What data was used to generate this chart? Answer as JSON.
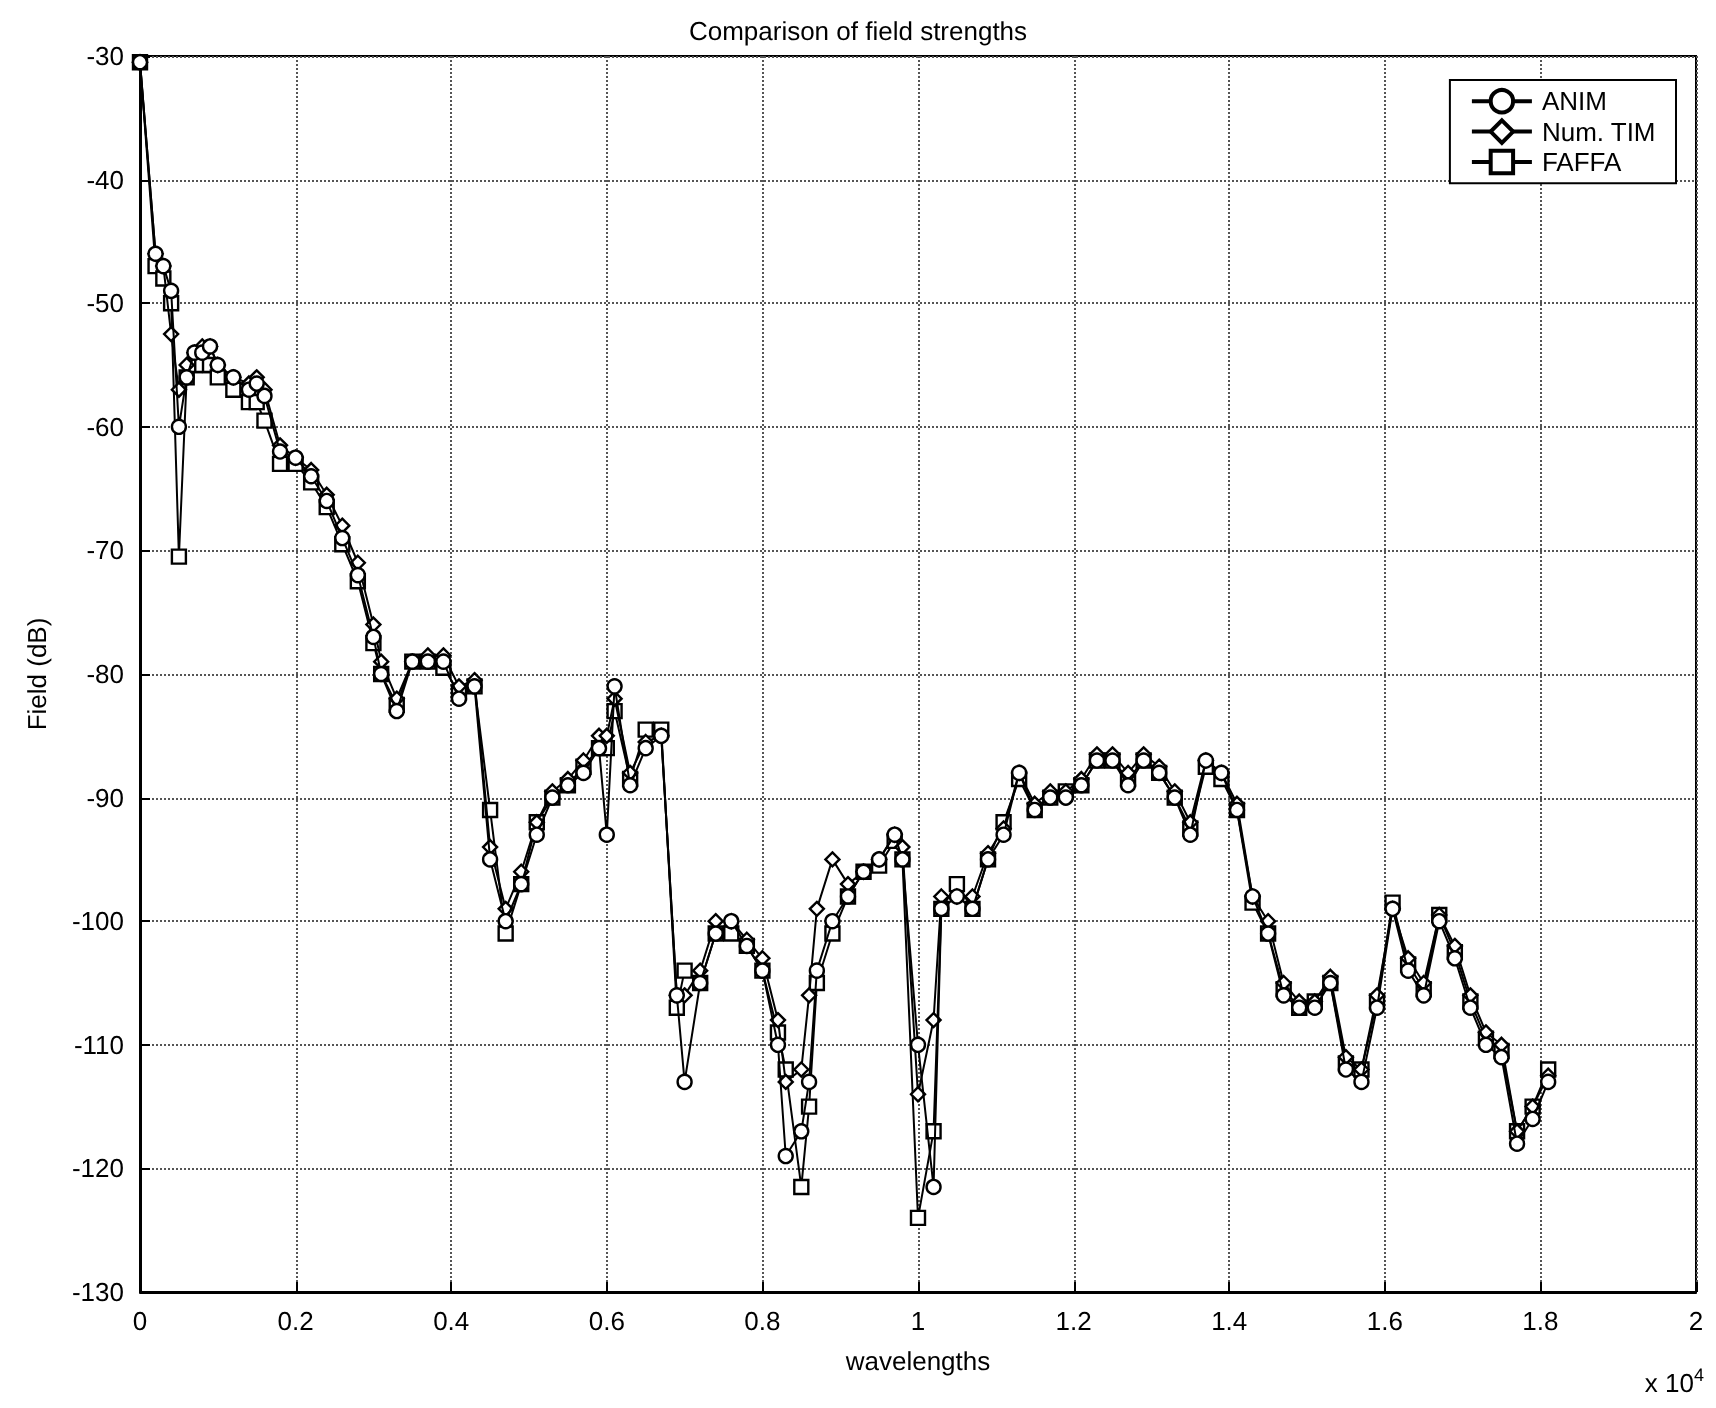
{
  "chart_data": {
    "type": "line",
    "title": "Comparison of field strengths",
    "xlabel": "wavelengths",
    "ylabel": "Field (dB)",
    "annotations": [
      "x 10$^{4}$"
    ],
    "x": [
      0,
      0.02,
      0.03,
      0.04,
      0.05,
      0.06,
      0.07,
      0.08,
      0.09,
      0.1,
      0.12,
      0.14,
      0.15,
      0.16,
      0.18,
      0.2,
      0.22,
      0.24,
      0.26,
      0.28,
      0.3,
      0.31,
      0.33,
      0.35,
      0.37,
      0.39,
      0.41,
      0.43,
      0.45,
      0.47,
      0.49,
      0.51,
      0.53,
      0.55,
      0.57,
      0.59,
      0.6,
      0.61,
      0.63,
      0.65,
      0.67,
      0.69,
      0.7,
      0.72,
      0.74,
      0.76,
      0.78,
      0.8,
      0.82,
      0.83,
      0.85,
      0.86,
      0.87,
      0.89,
      0.91,
      0.93,
      0.95,
      0.97,
      0.98,
      1,
      1.02,
      1.03,
      1.05,
      1.07,
      1.09,
      1.11,
      1.13,
      1.15,
      1.17,
      1.19,
      1.21,
      1.23,
      1.25,
      1.27,
      1.29,
      1.31,
      1.33,
      1.35,
      1.37,
      1.39,
      1.41,
      1.43,
      1.45,
      1.47,
      1.49,
      1.51,
      1.53,
      1.55,
      1.57,
      1.59,
      1.61,
      1.63,
      1.65,
      1.67,
      1.69,
      1.71,
      1.73,
      1.75,
      1.77,
      1.79,
      1.81
    ],
    "series": [
      {
        "name": "ANIM",
        "color": "#000000",
        "marker": "circle",
        "values": [
          -30.5,
          -46,
          -47,
          -49,
          -60,
          -56,
          -54,
          -54,
          -53.5,
          -55,
          -56,
          -57,
          -56.5,
          -57.5,
          -62,
          -62.5,
          -64,
          -66,
          -69,
          -72,
          -77,
          -80,
          -83,
          -79,
          -79,
          -79,
          -82,
          -81,
          -95,
          -100,
          -97,
          -93,
          -90,
          -89,
          -88,
          -86,
          -93,
          -81,
          -89,
          -86,
          -85,
          -106,
          -113,
          -105,
          -101,
          -100,
          -102,
          -104,
          -110,
          -119,
          -117,
          -113,
          -104,
          -100,
          -98,
          -96,
          -95,
          -93,
          -95,
          -110,
          -121.5,
          -99,
          -98,
          -99,
          -95,
          -93,
          -88,
          -91,
          -90,
          -90,
          -89,
          -87,
          -87,
          -89,
          -87,
          -88,
          -90,
          -93,
          -87,
          -88,
          -91,
          -98,
          -101,
          -106,
          -107,
          -107,
          -105,
          -112,
          -113,
          -107,
          -99,
          -104,
          -106,
          -100,
          -103,
          -107,
          -110,
          -111,
          -118,
          -116,
          -113
        ]
      },
      {
        "name": "Num. TIM",
        "color": "#000000",
        "marker": "diamond",
        "values": [
          -30.5,
          -46,
          -47,
          -52.5,
          -57,
          -55,
          -54,
          -53.5,
          -53.5,
          -55,
          -56,
          -56.5,
          -56,
          -57,
          -61.5,
          -62.5,
          -63.5,
          -65.5,
          -68,
          -71,
          -76,
          -79,
          -82,
          -79,
          -78.5,
          -78.5,
          -81,
          -80.5,
          -94,
          -99,
          -96,
          -92,
          -89.5,
          -88.5,
          -87,
          -85,
          -85,
          -82,
          -88,
          -85.5,
          -85,
          -106,
          -106,
          -104,
          -100,
          -100,
          -101.5,
          -103,
          -108,
          -113,
          -112,
          -106,
          -99,
          -95,
          -97,
          -96,
          -95,
          -93,
          -94,
          -114,
          -108,
          -98,
          -98,
          -98,
          -94.5,
          -92.5,
          -88,
          -90.5,
          -89.5,
          -89.5,
          -88.5,
          -86.5,
          -86.5,
          -88,
          -86.5,
          -87.5,
          -89.5,
          -92,
          -87,
          -88,
          -90.5,
          -98,
          -100,
          -105,
          -106.5,
          -106.5,
          -104.5,
          -111,
          -112,
          -106,
          -99,
          -103,
          -105,
          -99.5,
          -102,
          -106,
          -109,
          -110,
          -117,
          -115,
          -112.5
        ]
      },
      {
        "name": "FAFFA",
        "color": "#000000",
        "marker": "square",
        "values": [
          -30.5,
          -47,
          -48,
          -50,
          -70.5,
          -56,
          -55,
          -55,
          -55,
          -56,
          -57,
          -58,
          -58,
          -59.5,
          -63,
          -63,
          -64.5,
          -66.5,
          -69.5,
          -72.5,
          -77.5,
          -80,
          -82.5,
          -79,
          -79,
          -79.5,
          -81.5,
          -81,
          -91,
          -101,
          -97,
          -92,
          -90,
          -89,
          -87.5,
          -86,
          -86,
          -83,
          -88.5,
          -84.5,
          -84.5,
          -107,
          -104,
          -105,
          -101,
          -101,
          -102,
          -104,
          -109,
          -112,
          -121.5,
          -115,
          -105,
          -101,
          -98,
          -96,
          -95.5,
          -93.5,
          -95,
          -124,
          -117,
          -99,
          -97,
          -99,
          -95,
          -92,
          -88.5,
          -91,
          -90,
          -89.5,
          -89,
          -87,
          -87,
          -88.5,
          -87,
          -88,
          -90,
          -92.5,
          -87.5,
          -88.5,
          -91,
          -98.5,
          -101,
          -105.5,
          -107,
          -106.5,
          -105,
          -111.5,
          -112,
          -106.5,
          -98.5,
          -103.5,
          -105.5,
          -99.5,
          -102.5,
          -106.5,
          -109.5,
          -110.5,
          -117,
          -115,
          -112
        ]
      }
    ],
    "xlim": [
      0,
      2
    ],
    "xticks": [
      0,
      0.2,
      0.4,
      0.6,
      0.8,
      1,
      1.2,
      1.4,
      1.6,
      1.8,
      2
    ],
    "ylim": [
      -130,
      -30
    ],
    "yticks": [
      -130,
      -120,
      -110,
      -100,
      -90,
      -80,
      -70,
      -60,
      -50,
      -40,
      -30
    ],
    "grid": true,
    "legend": "top right",
    "line_style": "solid"
  }
}
